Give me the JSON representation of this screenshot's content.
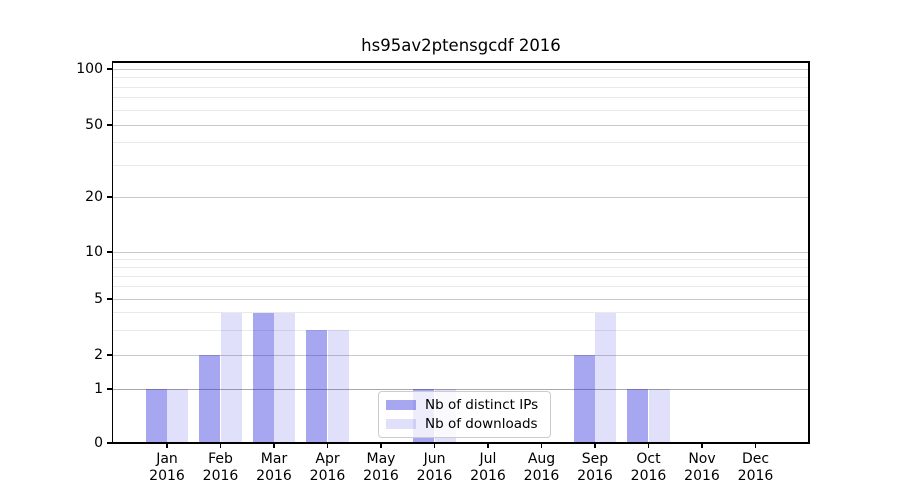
{
  "title": "hs95av2ptensgcdf 2016",
  "colors": {
    "series_distinct_ips": "rgba(34,34,221,0.40)",
    "series_downloads": "rgba(34,34,221,0.14)",
    "grid_major": "#c9c9c9",
    "grid_minor": "#e9e9e9",
    "axis": "#000000"
  },
  "chart_data": {
    "type": "bar",
    "title": "hs95av2ptensgcdf 2016",
    "categories": [
      "Jan 2016",
      "Feb 2016",
      "Mar 2016",
      "Apr 2016",
      "May 2016",
      "Jun 2016",
      "Jul 2016",
      "Aug 2016",
      "Sep 2016",
      "Oct 2016",
      "Nov 2016",
      "Dec 2016"
    ],
    "series": [
      {
        "name": "Nb of distinct IPs",
        "color": "rgba(34,34,221,0.40)",
        "values": [
          1,
          2,
          4,
          3,
          0,
          1,
          0,
          0,
          2,
          1,
          0,
          0
        ]
      },
      {
        "name": "Nb of downloads",
        "color": "rgba(34,34,221,0.14)",
        "values": [
          1,
          4,
          4,
          3,
          0,
          1,
          0,
          0,
          4,
          1,
          0,
          0
        ]
      }
    ],
    "xlabel": "",
    "ylabel": "",
    "yscale": "symlog",
    "yticks": [
      0,
      1,
      2,
      5,
      10,
      20,
      50,
      100
    ],
    "ylim": [
      0,
      100
    ],
    "grid": true,
    "legend_position": "inside-bottom-center"
  },
  "legend": {
    "items": [
      {
        "label": "Nb of distinct IPs"
      },
      {
        "label": "Nb of downloads"
      }
    ]
  }
}
